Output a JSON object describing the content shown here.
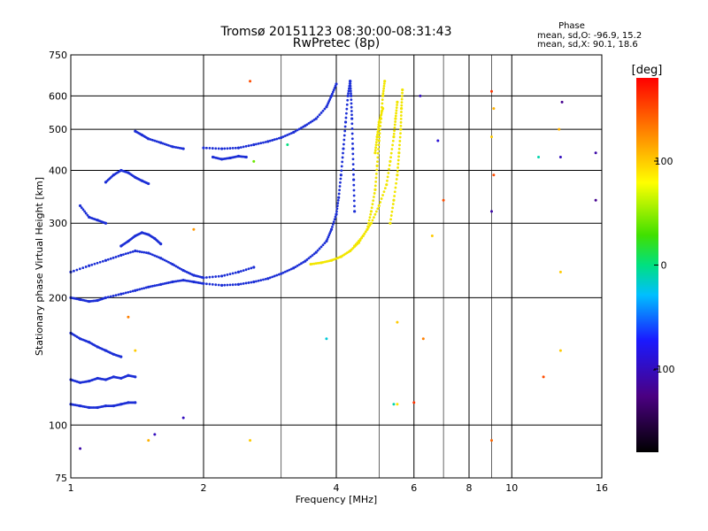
{
  "chart_data": {
    "type": "scatter",
    "title": "Tromsø 20151123 08:30:00-08:31:43",
    "subtitle": "RwPretec (8p)",
    "xlabel": "Frequency [MHz]",
    "ylabel": "Stationary phase Virtual Height [km]",
    "x_scale": "log",
    "y_scale": "log",
    "xlim": [
      1,
      16
    ],
    "ylim": [
      75,
      750
    ],
    "x_ticks": [
      1,
      2,
      4,
      6,
      8,
      10,
      16
    ],
    "y_ticks": [
      75,
      100,
      200,
      300,
      400,
      500,
      600,
      750
    ],
    "x_minor_gridlines": [
      3,
      5,
      7,
      9
    ],
    "grid": true,
    "legend_position": "right",
    "phase_box": {
      "heading": "Phase",
      "line_o": "mean, sd,O: -96.9, 15.2",
      "line_x": "mean, sd,X:  90.1, 18.6"
    },
    "colorbar": {
      "label": "[deg]",
      "min": -180,
      "max": 180,
      "ticks": [
        100,
        0,
        -100
      ]
    },
    "series": [
      {
        "name": "O",
        "color": "#1c2fd6",
        "mean_phase": -96.9,
        "traces": [
          [
            [
              1.0,
              112
            ],
            [
              1.05,
              111
            ],
            [
              1.1,
              110
            ],
            [
              1.15,
              110
            ],
            [
              1.2,
              111
            ],
            [
              1.25,
              111
            ],
            [
              1.3,
              112
            ],
            [
              1.35,
              113
            ],
            [
              1.4,
              113
            ]
          ],
          [
            [
              1.0,
              128
            ],
            [
              1.05,
              126
            ],
            [
              1.1,
              127
            ],
            [
              1.15,
              129
            ],
            [
              1.2,
              128
            ],
            [
              1.25,
              130
            ],
            [
              1.3,
              129
            ],
            [
              1.35,
              131
            ],
            [
              1.4,
              130
            ]
          ],
          [
            [
              1.0,
              200
            ],
            [
              1.05,
              198
            ],
            [
              1.1,
              196
            ],
            [
              1.15,
              197
            ],
            [
              1.2,
              200
            ],
            [
              1.3,
              204
            ],
            [
              1.4,
              208
            ],
            [
              1.5,
              212
            ],
            [
              1.6,
              215
            ],
            [
              1.7,
              218
            ],
            [
              1.8,
              220
            ],
            [
              1.9,
              218
            ],
            [
              2.0,
              216
            ],
            [
              2.2,
              214
            ],
            [
              2.4,
              215
            ],
            [
              2.6,
              218
            ],
            [
              2.8,
              222
            ],
            [
              3.0,
              228
            ],
            [
              3.2,
              235
            ],
            [
              3.4,
              244
            ],
            [
              3.6,
              256
            ],
            [
              3.8,
              272
            ],
            [
              3.9,
              290
            ],
            [
              4.0,
              315
            ],
            [
              4.05,
              345
            ],
            [
              4.1,
              390
            ],
            [
              4.15,
              450
            ],
            [
              4.2,
              520
            ],
            [
              4.25,
              600
            ],
            [
              4.3,
              650
            ]
          ],
          [
            [
              1.0,
              230
            ],
            [
              1.1,
              238
            ],
            [
              1.2,
              245
            ],
            [
              1.3,
              252
            ],
            [
              1.4,
              258
            ],
            [
              1.5,
              255
            ],
            [
              1.6,
              248
            ],
            [
              1.7,
              240
            ],
            [
              1.8,
              232
            ],
            [
              1.9,
              226
            ],
            [
              2.0,
              223
            ],
            [
              2.2,
              225
            ],
            [
              2.4,
              230
            ],
            [
              2.6,
              236
            ]
          ],
          [
            [
              1.3,
              265
            ],
            [
              1.35,
              272
            ],
            [
              1.4,
              280
            ],
            [
              1.45,
              285
            ],
            [
              1.5,
              282
            ],
            [
              1.55,
              276
            ],
            [
              1.6,
              268
            ]
          ],
          [
            [
              2.0,
              452
            ],
            [
              2.2,
              450
            ],
            [
              2.4,
              452
            ],
            [
              2.6,
              460
            ],
            [
              2.8,
              468
            ],
            [
              3.0,
              478
            ],
            [
              3.2,
              492
            ],
            [
              3.4,
              510
            ],
            [
              3.6,
              530
            ],
            [
              3.8,
              565
            ],
            [
              3.9,
              600
            ],
            [
              4.0,
              640
            ]
          ],
          [
            [
              1.2,
              375
            ],
            [
              1.25,
              390
            ],
            [
              1.3,
              400
            ],
            [
              1.35,
              395
            ],
            [
              1.4,
              385
            ],
            [
              1.45,
              378
            ],
            [
              1.5,
              372
            ]
          ],
          [
            [
              1.4,
              495
            ],
            [
              1.45,
              485
            ],
            [
              1.5,
              475
            ],
            [
              1.6,
              465
            ],
            [
              1.7,
              455
            ],
            [
              1.8,
              450
            ]
          ],
          [
            [
              1.05,
              330
            ],
            [
              1.1,
              310
            ],
            [
              1.15,
              305
            ],
            [
              1.2,
              300
            ]
          ],
          [
            [
              1.0,
              165
            ],
            [
              1.05,
              160
            ],
            [
              1.1,
              157
            ],
            [
              1.15,
              153
            ],
            [
              1.2,
              150
            ],
            [
              1.25,
              147
            ],
            [
              1.3,
              145
            ]
          ],
          [
            [
              2.1,
              430
            ],
            [
              2.2,
              425
            ],
            [
              2.3,
              428
            ],
            [
              2.4,
              432
            ],
            [
              2.5,
              430
            ]
          ],
          [
            [
              4.4,
              320
            ],
            [
              4.38,
              380
            ],
            [
              4.36,
              450
            ],
            [
              4.34,
              530
            ],
            [
              4.32,
              600
            ],
            [
              4.3,
              650
            ]
          ]
        ]
      },
      {
        "name": "X",
        "color": "#f2e600",
        "mean_phase": 90.1,
        "traces": [
          [
            [
              3.5,
              240
            ],
            [
              3.7,
              242
            ],
            [
              3.9,
              245
            ],
            [
              4.1,
              250
            ],
            [
              4.3,
              258
            ],
            [
              4.5,
              270
            ],
            [
              4.7,
              290
            ],
            [
              4.8,
              320
            ],
            [
              4.9,
              360
            ],
            [
              4.95,
              410
            ],
            [
              5.0,
              470
            ],
            [
              5.05,
              530
            ],
            [
              5.1,
              600
            ],
            [
              5.15,
              650
            ]
          ],
          [
            [
              4.4,
              265
            ],
            [
              4.6,
              280
            ],
            [
              4.8,
              300
            ],
            [
              5.0,
              330
            ],
            [
              5.2,
              370
            ],
            [
              5.3,
              420
            ],
            [
              5.4,
              480
            ],
            [
              5.45,
              530
            ],
            [
              5.5,
              580
            ]
          ],
          [
            [
              5.3,
              300
            ],
            [
              5.4,
              340
            ],
            [
              5.5,
              390
            ],
            [
              5.55,
              440
            ],
            [
              5.6,
              500
            ],
            [
              5.62,
              560
            ],
            [
              5.65,
              620
            ]
          ],
          [
            [
              4.9,
              440
            ],
            [
              4.95,
              480
            ],
            [
              5.0,
              520
            ],
            [
              5.1,
              560
            ]
          ]
        ]
      }
    ],
    "sparse_points": [
      {
        "x": 6.2,
        "y": 600,
        "phase": -100
      },
      {
        "x": 6.8,
        "y": 470,
        "phase": -90
      },
      {
        "x": 6.6,
        "y": 280,
        "phase": 100
      },
      {
        "x": 7.0,
        "y": 340,
        "phase": 150
      },
      {
        "x": 9.0,
        "y": 615,
        "phase": 160
      },
      {
        "x": 9.1,
        "y": 560,
        "phase": 110
      },
      {
        "x": 9.0,
        "y": 480,
        "phase": 100
      },
      {
        "x": 9.1,
        "y": 390,
        "phase": 150
      },
      {
        "x": 9.0,
        "y": 320,
        "phase": -110
      },
      {
        "x": 13.0,
        "y": 580,
        "phase": -120
      },
      {
        "x": 12.8,
        "y": 500,
        "phase": 110
      },
      {
        "x": 12.9,
        "y": 430,
        "phase": -100
      },
      {
        "x": 15.5,
        "y": 440,
        "phase": -110
      },
      {
        "x": 15.5,
        "y": 340,
        "phase": -120
      },
      {
        "x": 11.5,
        "y": 430,
        "phase": -10
      },
      {
        "x": 12.9,
        "y": 230,
        "phase": 100
      },
      {
        "x": 12.9,
        "y": 150,
        "phase": 100
      },
      {
        "x": 11.8,
        "y": 130,
        "phase": 150
      },
      {
        "x": 9.0,
        "y": 92,
        "phase": 140
      },
      {
        "x": 2.55,
        "y": 92,
        "phase": 100
      },
      {
        "x": 2.55,
        "y": 650,
        "phase": 150
      },
      {
        "x": 5.5,
        "y": 112,
        "phase": 90
      },
      {
        "x": 6.0,
        "y": 113,
        "phase": 160
      },
      {
        "x": 5.4,
        "y": 112,
        "phase": -10
      },
      {
        "x": 3.8,
        "y": 160,
        "phase": -20
      },
      {
        "x": 5.5,
        "y": 175,
        "phase": 100
      },
      {
        "x": 6.3,
        "y": 160,
        "phase": 130
      },
      {
        "x": 3.1,
        "y": 460,
        "phase": 0
      },
      {
        "x": 2.6,
        "y": 420,
        "phase": 40
      },
      {
        "x": 1.9,
        "y": 290,
        "phase": 120
      },
      {
        "x": 1.55,
        "y": 95,
        "phase": -100
      },
      {
        "x": 1.8,
        "y": 104,
        "phase": -100
      },
      {
        "x": 1.05,
        "y": 88,
        "phase": -110
      },
      {
        "x": 1.35,
        "y": 180,
        "phase": 130
      },
      {
        "x": 1.4,
        "y": 150,
        "phase": 100
      },
      {
        "x": 1.5,
        "y": 92,
        "phase": 110
      }
    ]
  }
}
